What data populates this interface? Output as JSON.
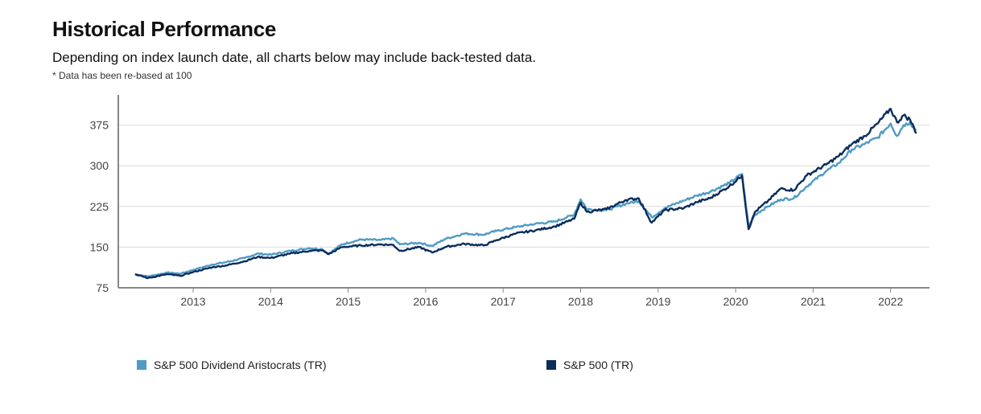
{
  "header": {
    "title": "Historical Performance",
    "subtitle": "Depending on index launch date, all charts below may include back-tested data.",
    "note": "* Data has been re-based at 100"
  },
  "chart_data": {
    "type": "line",
    "title": "",
    "xlabel": "",
    "ylabel": "",
    "ylim": [
      75,
      412
    ],
    "yticks": [
      "75",
      "150",
      "225",
      "300",
      "375"
    ],
    "xticks": [
      "2013",
      "2014",
      "2015",
      "2016",
      "2017",
      "2018",
      "2019",
      "2020",
      "2021",
      "2022"
    ],
    "grid": "horizontal",
    "legend": "bottom",
    "series": [
      {
        "name": "S&P 500 Dividend Aristocrats (TR)",
        "color": "#4f9bc4",
        "points": [
          [
            "2012-04",
            100
          ],
          [
            "2012-06",
            96
          ],
          [
            "2012-09",
            103
          ],
          [
            "2012-11",
            101
          ],
          [
            "2013-01",
            108
          ],
          [
            "2013-04",
            118
          ],
          [
            "2013-06",
            122
          ],
          [
            "2013-09",
            130
          ],
          [
            "2013-11",
            138
          ],
          [
            "2014-01",
            136
          ],
          [
            "2014-04",
            143
          ],
          [
            "2014-07",
            148
          ],
          [
            "2014-09",
            146
          ],
          [
            "2014-10",
            138
          ],
          [
            "2014-12",
            155
          ],
          [
            "2015-03",
            164
          ],
          [
            "2015-06",
            163
          ],
          [
            "2015-08",
            166
          ],
          [
            "2015-09",
            155
          ],
          [
            "2015-12",
            158
          ],
          [
            "2016-02",
            152
          ],
          [
            "2016-04",
            165
          ],
          [
            "2016-07",
            175
          ],
          [
            "2016-10",
            173
          ],
          [
            "2016-12",
            180
          ],
          [
            "2017-03",
            187
          ],
          [
            "2017-06",
            193
          ],
          [
            "2017-09",
            197
          ],
          [
            "2017-12",
            210
          ],
          [
            "2018-01",
            238
          ],
          [
            "2018-02",
            220
          ],
          [
            "2018-05",
            218
          ],
          [
            "2018-08",
            230
          ],
          [
            "2018-10",
            235
          ],
          [
            "2018-12",
            205
          ],
          [
            "2019-02",
            222
          ],
          [
            "2019-05",
            236
          ],
          [
            "2019-07",
            245
          ],
          [
            "2019-09",
            252
          ],
          [
            "2019-12",
            268
          ],
          [
            "2020-02",
            285
          ],
          [
            "2020-03",
            188
          ],
          [
            "2020-04",
            210
          ],
          [
            "2020-06",
            225
          ],
          [
            "2020-08",
            238
          ],
          [
            "2020-10",
            240
          ],
          [
            "2020-12",
            262
          ],
          [
            "2021-03",
            290
          ],
          [
            "2021-05",
            305
          ],
          [
            "2021-07",
            330
          ],
          [
            "2021-09",
            340
          ],
          [
            "2021-11",
            352
          ],
          [
            "2022-01",
            378
          ],
          [
            "2022-02",
            355
          ],
          [
            "2022-03",
            375
          ],
          [
            "2022-04",
            380
          ],
          [
            "2022-05",
            365
          ]
        ]
      },
      {
        "name": "S&P 500 (TR)",
        "color": "#0b2d5b",
        "points": [
          [
            "2012-04",
            100
          ],
          [
            "2012-06",
            93
          ],
          [
            "2012-09",
            100
          ],
          [
            "2012-11",
            97
          ],
          [
            "2013-01",
            104
          ],
          [
            "2013-04",
            113
          ],
          [
            "2013-06",
            116
          ],
          [
            "2013-09",
            124
          ],
          [
            "2013-11",
            132
          ],
          [
            "2014-01",
            130
          ],
          [
            "2014-04",
            138
          ],
          [
            "2014-07",
            143
          ],
          [
            "2014-09",
            144
          ],
          [
            "2014-10",
            137
          ],
          [
            "2014-12",
            150
          ],
          [
            "2015-03",
            153
          ],
          [
            "2015-06",
            155
          ],
          [
            "2015-08",
            154
          ],
          [
            "2015-09",
            143
          ],
          [
            "2015-12",
            150
          ],
          [
            "2016-02",
            140
          ],
          [
            "2016-04",
            150
          ],
          [
            "2016-07",
            156
          ],
          [
            "2016-10",
            153
          ],
          [
            "2016-12",
            163
          ],
          [
            "2017-03",
            175
          ],
          [
            "2017-06",
            181
          ],
          [
            "2017-09",
            188
          ],
          [
            "2017-12",
            202
          ],
          [
            "2018-01",
            232
          ],
          [
            "2018-02",
            215
          ],
          [
            "2018-05",
            220
          ],
          [
            "2018-08",
            237
          ],
          [
            "2018-10",
            240
          ],
          [
            "2018-12",
            195
          ],
          [
            "2019-02",
            218
          ],
          [
            "2019-05",
            222
          ],
          [
            "2019-07",
            233
          ],
          [
            "2019-09",
            240
          ],
          [
            "2019-12",
            262
          ],
          [
            "2020-02",
            282
          ],
          [
            "2020-03",
            183
          ],
          [
            "2020-04",
            215
          ],
          [
            "2020-06",
            235
          ],
          [
            "2020-08",
            258
          ],
          [
            "2020-10",
            255
          ],
          [
            "2020-12",
            282
          ],
          [
            "2021-03",
            302
          ],
          [
            "2021-05",
            318
          ],
          [
            "2021-07",
            340
          ],
          [
            "2021-09",
            355
          ],
          [
            "2021-11",
            378
          ],
          [
            "2022-01",
            405
          ],
          [
            "2022-02",
            380
          ],
          [
            "2022-03",
            393
          ],
          [
            "2022-04",
            385
          ],
          [
            "2022-05",
            360
          ]
        ]
      }
    ]
  }
}
